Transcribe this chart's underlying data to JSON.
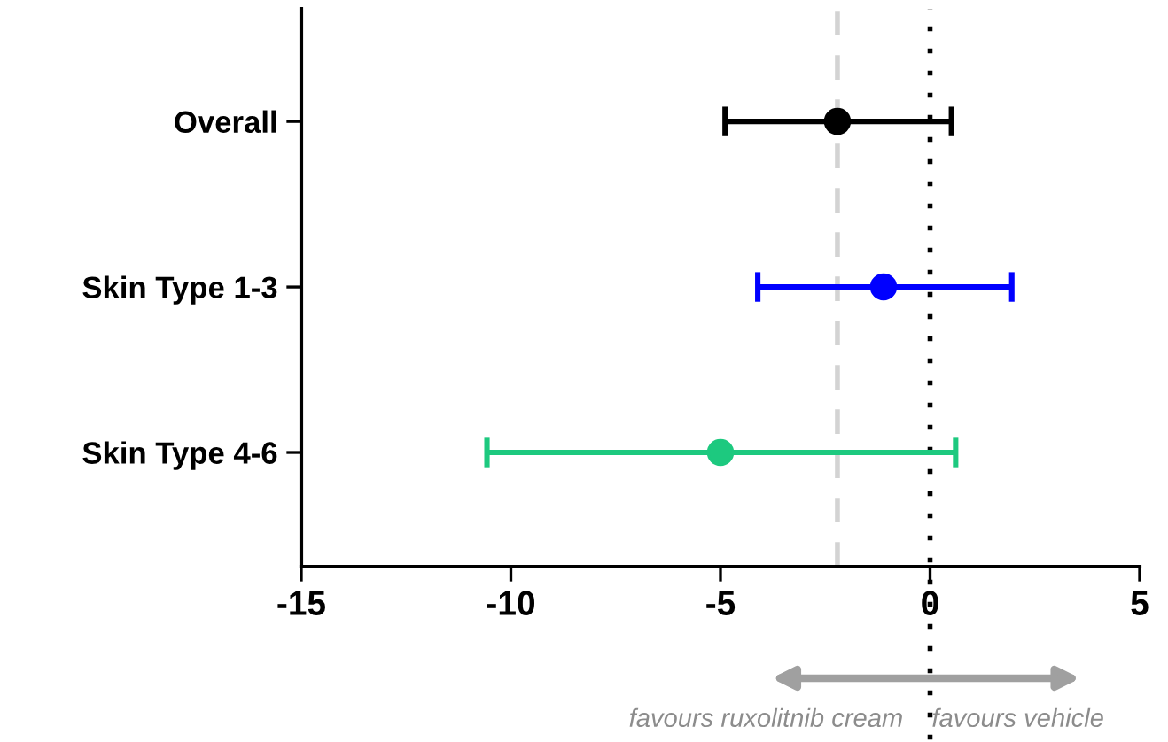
{
  "chart_data": {
    "type": "scatter",
    "orientation": "horizontal",
    "categories": [
      "Overall",
      "Skin Type 1-3",
      "Skin Type 4-6"
    ],
    "values": [
      -2.21,
      -1.11,
      -5.0
    ],
    "errors": [
      [
        -4.89,
        0.51
      ],
      [
        -4.11,
        1.95
      ],
      [
        -10.57,
        0.61
      ]
    ],
    "colors": [
      "#000000",
      "#0000ff",
      "#1dc97f"
    ],
    "marker": "circle",
    "xlim": [
      -15,
      5
    ],
    "xticks": [
      -15,
      -10,
      -5,
      0,
      5
    ],
    "grid": false,
    "ref_lines": [
      {
        "axis": "x",
        "value": -2.21,
        "color": "#d3d3d3",
        "line_style": "dashed"
      },
      {
        "axis": "x",
        "value": 0,
        "color": "#000000",
        "line_style": "dotted"
      }
    ],
    "annotations": [
      "favours ruxolitnib cream",
      "favours vehicle"
    ]
  }
}
